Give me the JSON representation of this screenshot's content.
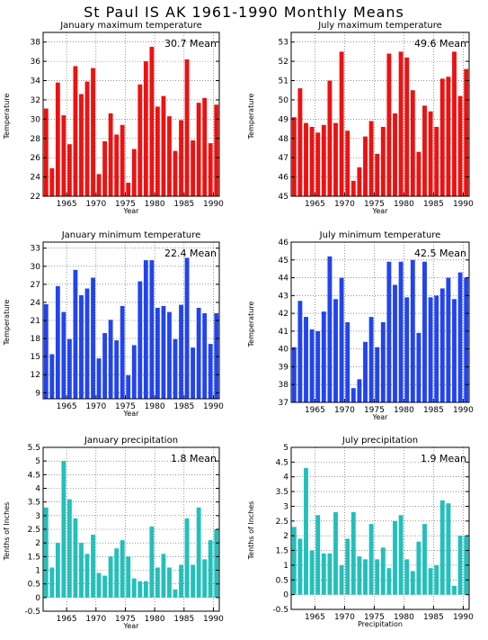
{
  "title": "St Paul IS AK   1961-1990 Monthly Means",
  "chart_data": [
    {
      "type": "bar",
      "title": "January maximum temperature",
      "mean_label": "30.7 Mean",
      "xlabel": "Year",
      "ylabel": "Temperature",
      "color": "#ee1111",
      "x": [
        1961,
        1962,
        1963,
        1964,
        1965,
        1966,
        1967,
        1968,
        1969,
        1970,
        1971,
        1972,
        1973,
        1974,
        1975,
        1976,
        1977,
        1978,
        1979,
        1980,
        1981,
        1982,
        1983,
        1984,
        1985,
        1986,
        1987,
        1988,
        1989,
        1990
      ],
      "values": [
        31.1,
        24.9,
        33.8,
        30.4,
        27.4,
        35.5,
        32.6,
        33.9,
        35.3,
        24.3,
        27.7,
        30.6,
        28.4,
        29.4,
        23.4,
        26.9,
        33.6,
        36.0,
        37.5,
        31.3,
        32.4,
        30.3,
        26.7,
        29.9,
        36.2,
        27.8,
        31.7,
        32.2,
        27.5,
        31.5
      ],
      "xlim": [
        1961,
        1990
      ],
      "ylim": [
        22,
        39
      ],
      "yticks": [
        22,
        24,
        26,
        28,
        30,
        32,
        34,
        36,
        38
      ],
      "xticks": [
        1965,
        1970,
        1975,
        1980,
        1985,
        1990
      ],
      "grid": true
    },
    {
      "type": "bar",
      "title": "July maximum temperature",
      "mean_label": "49.6 Mean",
      "xlabel": "Year",
      "ylabel": "Temperature",
      "color": "#ee1111",
      "x": [
        1961,
        1962,
        1963,
        1964,
        1965,
        1966,
        1967,
        1968,
        1969,
        1970,
        1971,
        1972,
        1973,
        1974,
        1975,
        1976,
        1977,
        1978,
        1979,
        1980,
        1981,
        1982,
        1983,
        1984,
        1985,
        1986,
        1987,
        1988,
        1989,
        1990
      ],
      "values": [
        49.1,
        50.6,
        48.8,
        48.6,
        48.3,
        48.7,
        51.0,
        48.8,
        52.5,
        48.4,
        45.8,
        46.5,
        48.1,
        48.9,
        47.2,
        48.6,
        52.4,
        49.3,
        52.5,
        52.2,
        50.5,
        47.3,
        49.7,
        49.4,
        48.6,
        51.1,
        51.2,
        52.5,
        50.2,
        51.6
      ],
      "xlim": [
        1961,
        1990
      ],
      "ylim": [
        45,
        53.5
      ],
      "yticks": [
        45,
        46,
        47,
        48,
        49,
        50,
        51,
        52,
        53
      ],
      "xticks": [
        1965,
        1970,
        1975,
        1980,
        1985,
        1990
      ],
      "grid": true
    },
    {
      "type": "bar",
      "title": "January minimum temperature",
      "mean_label": "22.4 Mean",
      "xlabel": "Year",
      "ylabel": "Temperature",
      "color": "#2244ee",
      "x": [
        1961,
        1962,
        1963,
        1964,
        1965,
        1966,
        1967,
        1968,
        1969,
        1970,
        1971,
        1972,
        1973,
        1974,
        1975,
        1976,
        1977,
        1978,
        1979,
        1980,
        1981,
        1982,
        1983,
        1984,
        1985,
        1986,
        1987,
        1988,
        1989,
        1990
      ],
      "values": [
        23.7,
        15.4,
        26.7,
        22.4,
        17.9,
        29.4,
        25.2,
        26.3,
        28.1,
        14.7,
        18.9,
        21.1,
        17.7,
        23.4,
        11.9,
        16.9,
        27.5,
        31.0,
        31.0,
        23.1,
        23.4,
        22.4,
        17.9,
        23.6,
        31.4,
        16.5,
        23.1,
        22.2,
        17.1,
        22.2
      ],
      "xlim": [
        1961,
        1990
      ],
      "ylim": [
        8,
        34
      ],
      "yticks": [
        9,
        12,
        15,
        18,
        21,
        24,
        27,
        30,
        33
      ],
      "xticks": [
        1965,
        1970,
        1975,
        1980,
        1985,
        1990
      ],
      "grid": true
    },
    {
      "type": "bar",
      "title": "July minimum temperature",
      "mean_label": "42.5 Mean",
      "xlabel": "Year",
      "ylabel": "Temperature",
      "color": "#2244ee",
      "x": [
        1961,
        1962,
        1963,
        1964,
        1965,
        1966,
        1967,
        1968,
        1969,
        1970,
        1971,
        1972,
        1973,
        1974,
        1975,
        1976,
        1977,
        1978,
        1979,
        1980,
        1981,
        1982,
        1983,
        1984,
        1985,
        1986,
        1987,
        1988,
        1989,
        1990
      ],
      "values": [
        40.1,
        42.7,
        41.8,
        41.1,
        41.0,
        42.1,
        45.2,
        42.8,
        44.0,
        41.5,
        37.8,
        38.3,
        40.4,
        41.8,
        40.1,
        41.5,
        44.9,
        43.6,
        44.9,
        42.9,
        45.0,
        40.9,
        44.9,
        42.9,
        43.0,
        43.4,
        44.0,
        42.8,
        44.3,
        44.0
      ],
      "xlim": [
        1961,
        1990
      ],
      "ylim": [
        37,
        46
      ],
      "yticks": [
        37,
        38,
        39,
        40,
        41,
        42,
        43,
        44,
        45,
        46
      ],
      "xticks": [
        1965,
        1970,
        1975,
        1980,
        1985,
        1990
      ],
      "grid": true
    },
    {
      "type": "bar",
      "title": "January precipitation",
      "mean_label": "1.8 Mean",
      "xlabel": "Year",
      "ylabel": "Tenths of Inches",
      "color": "#22c0bb",
      "x": [
        1961,
        1962,
        1963,
        1964,
        1965,
        1966,
        1967,
        1968,
        1969,
        1970,
        1971,
        1972,
        1973,
        1974,
        1975,
        1976,
        1977,
        1978,
        1979,
        1980,
        1981,
        1982,
        1983,
        1984,
        1985,
        1986,
        1987,
        1988,
        1989,
        1990
      ],
      "values": [
        3.3,
        1.1,
        2.0,
        5.0,
        3.6,
        2.9,
        2.0,
        1.6,
        2.3,
        0.9,
        0.8,
        1.5,
        1.8,
        2.1,
        1.5,
        0.7,
        0.6,
        0.6,
        2.6,
        1.1,
        1.6,
        1.1,
        0.3,
        1.2,
        2.9,
        1.2,
        3.3,
        1.4,
        2.1,
        2.5
      ],
      "xlim": [
        1961,
        1990
      ],
      "ylim": [
        -0.5,
        5.5
      ],
      "yticks": [
        -0.5,
        0,
        0.5,
        1,
        1.5,
        2,
        2.5,
        3,
        3.5,
        4,
        4.5,
        5,
        5.5
      ],
      "xticks": [
        1965,
        1970,
        1975,
        1980,
        1985,
        1990
      ],
      "grid": true
    },
    {
      "type": "bar",
      "title": "July precipitation",
      "mean_label": "1.9 Mean",
      "xlabel": "Precipitation",
      "ylabel": "Tenths of Inches",
      "color": "#22c0bb",
      "x": [
        1961,
        1962,
        1963,
        1964,
        1965,
        1966,
        1967,
        1968,
        1969,
        1970,
        1971,
        1972,
        1973,
        1974,
        1975,
        1976,
        1977,
        1978,
        1979,
        1980,
        1981,
        1982,
        1983,
        1984,
        1985,
        1986,
        1987,
        1988,
        1989,
        1990
      ],
      "values": [
        2.3,
        1.9,
        4.3,
        1.5,
        2.7,
        1.4,
        1.4,
        2.8,
        1.0,
        1.9,
        2.8,
        1.3,
        1.2,
        2.4,
        1.2,
        1.6,
        0.9,
        2.5,
        2.7,
        1.2,
        0.8,
        1.8,
        2.4,
        0.9,
        1.0,
        3.2,
        3.1,
        0.3,
        2.0,
        2.0
      ],
      "xlim": [
        1961,
        1990
      ],
      "ylim": [
        -0.5,
        5
      ],
      "yticks": [
        -0.5,
        0,
        0.5,
        1,
        1.5,
        2,
        2.5,
        3,
        3.5,
        4,
        4.5,
        5
      ],
      "xticks": [
        1965,
        1970,
        1975,
        1980,
        1985,
        1990
      ],
      "grid": true
    }
  ]
}
